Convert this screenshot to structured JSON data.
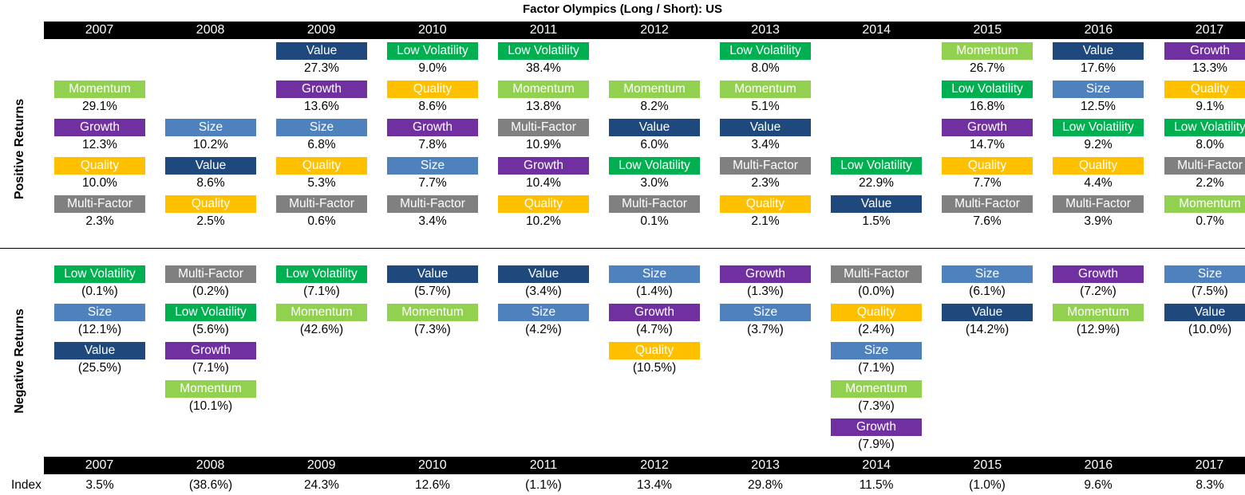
{
  "title": "Factor Olympics (Long / Short): US",
  "side_labels": {
    "positive": "Positive  Returns",
    "negative": "Negative  Returns"
  },
  "index_label": "Index",
  "colors": {
    "Value": "#1F497D",
    "Low Volatility": "#00B050",
    "Momentum": "#92D050",
    "Growth": "#7030A0",
    "Size": "#4F81BD",
    "Quality": "#FFC000",
    "Multi-Factor": "#808080"
  },
  "chart_data": {
    "type": "table",
    "years": [
      "2007",
      "2008",
      "2009",
      "2010",
      "2011",
      "2012",
      "2013",
      "2014",
      "2015",
      "2016",
      "2017"
    ],
    "positive": [
      [
        null,
        null,
        {
          "factor": "Value",
          "value": "27.3%"
        },
        {
          "factor": "Low Volatility",
          "value": "9.0%"
        },
        {
          "factor": "Low Volatility",
          "value": "38.4%"
        },
        null,
        {
          "factor": "Low Volatility",
          "value": "8.0%"
        },
        null,
        {
          "factor": "Momentum",
          "value": "26.7%"
        },
        {
          "factor": "Value",
          "value": "17.6%"
        },
        {
          "factor": "Growth",
          "value": "13.3%"
        }
      ],
      [
        {
          "factor": "Momentum",
          "value": "29.1%"
        },
        null,
        {
          "factor": "Growth",
          "value": "13.6%"
        },
        {
          "factor": "Quality",
          "value": "8.6%"
        },
        {
          "factor": "Momentum",
          "value": "13.8%"
        },
        {
          "factor": "Momentum",
          "value": "8.2%"
        },
        {
          "factor": "Momentum",
          "value": "5.1%"
        },
        null,
        {
          "factor": "Low Volatility",
          "value": "16.8%"
        },
        {
          "factor": "Size",
          "value": "12.5%"
        },
        {
          "factor": "Quality",
          "value": "9.1%"
        }
      ],
      [
        {
          "factor": "Growth",
          "value": "12.3%"
        },
        {
          "factor": "Size",
          "value": "10.2%"
        },
        {
          "factor": "Size",
          "value": "6.8%"
        },
        {
          "factor": "Growth",
          "value": "7.8%"
        },
        {
          "factor": "Multi-Factor",
          "value": "10.9%"
        },
        {
          "factor": "Value",
          "value": "6.0%"
        },
        {
          "factor": "Value",
          "value": "3.4%"
        },
        null,
        {
          "factor": "Growth",
          "value": "14.7%"
        },
        {
          "factor": "Low Volatility",
          "value": "9.2%"
        },
        {
          "factor": "Low Volatility",
          "value": "8.0%"
        }
      ],
      [
        {
          "factor": "Quality",
          "value": "10.0%"
        },
        {
          "factor": "Value",
          "value": "8.6%"
        },
        {
          "factor": "Quality",
          "value": "5.3%"
        },
        {
          "factor": "Size",
          "value": "7.7%"
        },
        {
          "factor": "Growth",
          "value": "10.4%"
        },
        {
          "factor": "Low Volatility",
          "value": "3.0%"
        },
        {
          "factor": "Multi-Factor",
          "value": "2.3%"
        },
        {
          "factor": "Low Volatility",
          "value": "22.9%"
        },
        {
          "factor": "Quality",
          "value": "7.7%"
        },
        {
          "factor": "Quality",
          "value": "4.4%"
        },
        {
          "factor": "Multi-Factor",
          "value": "2.2%"
        }
      ],
      [
        {
          "factor": "Multi-Factor",
          "value": "2.3%"
        },
        {
          "factor": "Quality",
          "value": "2.5%"
        },
        {
          "factor": "Multi-Factor",
          "value": "0.6%"
        },
        {
          "factor": "Multi-Factor",
          "value": "3.4%"
        },
        {
          "factor": "Quality",
          "value": "10.2%"
        },
        {
          "factor": "Multi-Factor",
          "value": "0.1%"
        },
        {
          "factor": "Quality",
          "value": "2.1%"
        },
        {
          "factor": "Value",
          "value": "1.5%"
        },
        {
          "factor": "Multi-Factor",
          "value": "7.6%"
        },
        {
          "factor": "Multi-Factor",
          "value": "3.9%"
        },
        {
          "factor": "Momentum",
          "value": "0.7%"
        }
      ]
    ],
    "negative": [
      [
        {
          "factor": "Low Volatility",
          "value": "(0.1%)"
        },
        {
          "factor": "Multi-Factor",
          "value": "(0.2%)"
        },
        {
          "factor": "Low Volatility",
          "value": "(7.1%)"
        },
        {
          "factor": "Value",
          "value": "(5.7%)"
        },
        {
          "factor": "Value",
          "value": "(3.4%)"
        },
        {
          "factor": "Size",
          "value": "(1.4%)"
        },
        {
          "factor": "Growth",
          "value": "(1.3%)"
        },
        {
          "factor": "Multi-Factor",
          "value": "(0.0%)"
        },
        {
          "factor": "Size",
          "value": "(6.1%)"
        },
        {
          "factor": "Growth",
          "value": "(7.2%)"
        },
        {
          "factor": "Size",
          "value": "(7.5%)"
        }
      ],
      [
        {
          "factor": "Size",
          "value": "(12.1%)"
        },
        {
          "factor": "Low Volatility",
          "value": "(5.6%)"
        },
        {
          "factor": "Momentum",
          "value": "(42.6%)"
        },
        {
          "factor": "Momentum",
          "value": "(7.3%)"
        },
        {
          "factor": "Size",
          "value": "(4.2%)"
        },
        {
          "factor": "Growth",
          "value": "(4.7%)"
        },
        {
          "factor": "Size",
          "value": "(3.7%)"
        },
        {
          "factor": "Quality",
          "value": "(2.4%)"
        },
        {
          "factor": "Value",
          "value": "(14.2%)"
        },
        {
          "factor": "Momentum",
          "value": "(12.9%)"
        },
        {
          "factor": "Value",
          "value": "(10.0%)"
        }
      ],
      [
        {
          "factor": "Value",
          "value": "(25.5%)"
        },
        {
          "factor": "Growth",
          "value": "(7.1%)"
        },
        null,
        null,
        null,
        {
          "factor": "Quality",
          "value": "(10.5%)"
        },
        null,
        {
          "factor": "Size",
          "value": "(7.1%)"
        },
        null,
        null,
        null
      ],
      [
        null,
        {
          "factor": "Momentum",
          "value": "(10.1%)"
        },
        null,
        null,
        null,
        null,
        null,
        {
          "factor": "Momentum",
          "value": "(7.3%)"
        },
        null,
        null,
        null
      ],
      [
        null,
        null,
        null,
        null,
        null,
        null,
        null,
        {
          "factor": "Growth",
          "value": "(7.9%)"
        },
        null,
        null,
        null
      ]
    ],
    "index": [
      "3.5%",
      "(38.6%)",
      "24.3%",
      "12.6%",
      "(1.1%)",
      "13.4%",
      "29.8%",
      "11.5%",
      "(1.0%)",
      "9.6%",
      "8.3%"
    ]
  }
}
